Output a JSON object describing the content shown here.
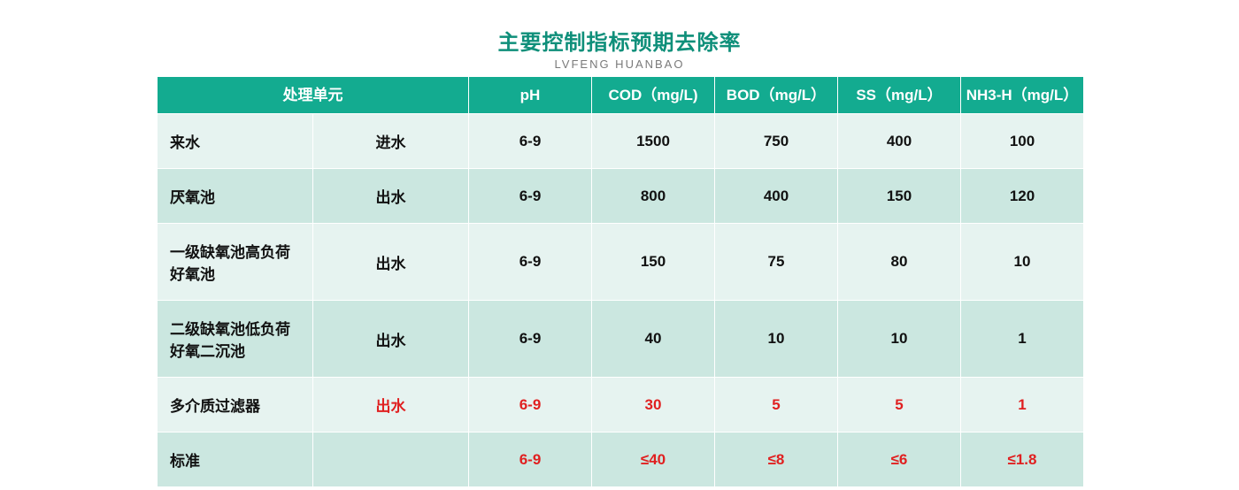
{
  "title": {
    "text": "主要控制指标预期去除率",
    "color": "#0f8f7a"
  },
  "subtitle": {
    "text": "LVFENG  HUANBAO",
    "color": "#7a7a7a"
  },
  "table": {
    "header_bg": "#13ab90",
    "row_odd_bg": "#e6f3f0",
    "row_even_bg": "#cbe7e0",
    "highlight_color": "#e02020",
    "columns": {
      "unit_label": "处理单元",
      "metrics": [
        "pH",
        "COD（mg/L)",
        "BOD（mg/L）",
        "SS（mg/L）",
        "NH3-H（mg/L）"
      ]
    },
    "rows": [
      {
        "unit": "来水",
        "flow": "进水",
        "values": [
          "6-9",
          "1500",
          "750",
          "400",
          "100"
        ],
        "highlight": false
      },
      {
        "unit": "厌氧池",
        "flow": "出水",
        "values": [
          "6-9",
          "800",
          "400",
          "150",
          "120"
        ],
        "highlight": false
      },
      {
        "unit": "一级缺氧池高负荷好氧池",
        "flow": "出水",
        "values": [
          "6-9",
          "150",
          "75",
          "80",
          "10"
        ],
        "highlight": false
      },
      {
        "unit": "二级缺氧池低负荷好氧二沉池",
        "flow": "出水",
        "values": [
          "6-9",
          "40",
          "10",
          "10",
          "1"
        ],
        "highlight": false
      },
      {
        "unit": "多介质过滤器",
        "flow": "出水",
        "values": [
          "6-9",
          "30",
          "5",
          "5",
          "1"
        ],
        "highlight": true
      },
      {
        "unit": "标准",
        "flow": "",
        "values": [
          "6-9",
          "≤40",
          "≤8",
          "≤6",
          "≤1.8"
        ],
        "highlight": true
      }
    ]
  }
}
